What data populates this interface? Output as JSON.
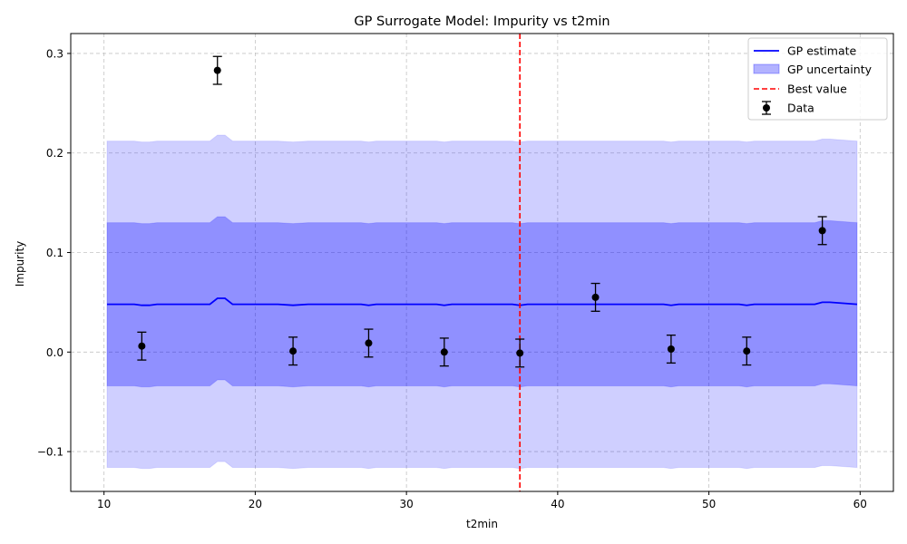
{
  "chart_data": {
    "type": "line",
    "title": "GP Surrogate Model: Impurity vs t2min",
    "xlabel": "t2min",
    "ylabel": "Impurity",
    "xlim": [
      7.8,
      62.2
    ],
    "ylim": [
      -0.14,
      0.32
    ],
    "x_ticks": [
      10,
      20,
      30,
      40,
      50,
      60
    ],
    "x_tick_labels": [
      "10",
      "20",
      "30",
      "40",
      "50",
      "60"
    ],
    "y_ticks": [
      -0.1,
      0.0,
      0.1,
      0.2,
      0.3
    ],
    "y_tick_labels": [
      "−0.1",
      "0.0",
      "0.1",
      "0.2",
      "0.3"
    ],
    "grid": true,
    "legend_position": "top-right",
    "legend": [
      "GP estimate",
      "GP uncertainty",
      "Best value",
      "Data"
    ],
    "gp_estimate": {
      "name": "GP estimate",
      "color": "#0000ff",
      "x": [
        10.2,
        12.0,
        12.5,
        13.0,
        13.5,
        17.0,
        17.5,
        18.0,
        18.5,
        21.5,
        22.5,
        23.5,
        27.0,
        27.5,
        28.0,
        32.0,
        32.5,
        33.0,
        37.0,
        37.5,
        38.0,
        42.0,
        42.5,
        43.0,
        47.0,
        47.5,
        48.0,
        52.0,
        52.5,
        53.0,
        57.0,
        57.5,
        58.0,
        59.8
      ],
      "y": [
        0.048,
        0.048,
        0.047,
        0.047,
        0.048,
        0.048,
        0.054,
        0.054,
        0.048,
        0.048,
        0.047,
        0.048,
        0.048,
        0.047,
        0.048,
        0.048,
        0.047,
        0.048,
        0.048,
        0.047,
        0.048,
        0.048,
        0.048,
        0.048,
        0.048,
        0.047,
        0.048,
        0.048,
        0.047,
        0.048,
        0.048,
        0.05,
        0.05,
        0.048
      ]
    },
    "gp_uncertainty": {
      "name": "GP uncertainty",
      "color": "#0000ff",
      "inner": {
        "upper": [
          0.13,
          0.13,
          0.129,
          0.129,
          0.13,
          0.13,
          0.136,
          0.136,
          0.13,
          0.13,
          0.129,
          0.13,
          0.13,
          0.129,
          0.13,
          0.13,
          0.129,
          0.13,
          0.13,
          0.129,
          0.13,
          0.13,
          0.13,
          0.13,
          0.13,
          0.129,
          0.13,
          0.13,
          0.129,
          0.13,
          0.13,
          0.132,
          0.132,
          0.13
        ],
        "lower": [
          -0.034,
          -0.034,
          -0.035,
          -0.035,
          -0.034,
          -0.034,
          -0.028,
          -0.028,
          -0.034,
          -0.034,
          -0.035,
          -0.034,
          -0.034,
          -0.035,
          -0.034,
          -0.034,
          -0.035,
          -0.034,
          -0.034,
          -0.035,
          -0.034,
          -0.034,
          -0.034,
          -0.034,
          -0.034,
          -0.035,
          -0.034,
          -0.034,
          -0.035,
          -0.034,
          -0.034,
          -0.032,
          -0.032,
          -0.034
        ]
      },
      "outer": {
        "upper": [
          0.212,
          0.212,
          0.211,
          0.211,
          0.212,
          0.212,
          0.218,
          0.218,
          0.212,
          0.212,
          0.211,
          0.212,
          0.212,
          0.211,
          0.212,
          0.212,
          0.211,
          0.212,
          0.212,
          0.211,
          0.212,
          0.212,
          0.212,
          0.212,
          0.212,
          0.211,
          0.212,
          0.212,
          0.211,
          0.212,
          0.212,
          0.214,
          0.214,
          0.212
        ],
        "lower": [
          -0.116,
          -0.116,
          -0.117,
          -0.117,
          -0.116,
          -0.116,
          -0.11,
          -0.11,
          -0.116,
          -0.116,
          -0.117,
          -0.116,
          -0.116,
          -0.117,
          -0.116,
          -0.116,
          -0.117,
          -0.116,
          -0.116,
          -0.117,
          -0.116,
          -0.116,
          -0.116,
          -0.116,
          -0.116,
          -0.117,
          -0.116,
          -0.116,
          -0.117,
          -0.116,
          -0.116,
          -0.114,
          -0.114,
          -0.116
        ]
      }
    },
    "best_value": {
      "name": "Best value",
      "x": 37.5,
      "color": "#ff0000"
    },
    "data_points": {
      "name": "Data",
      "color": "#000000",
      "x": [
        12.5,
        17.5,
        22.5,
        27.5,
        32.5,
        37.5,
        42.5,
        47.5,
        52.5,
        57.5
      ],
      "y": [
        0.006,
        0.283,
        0.001,
        0.009,
        0.0,
        -0.001,
        0.055,
        0.003,
        0.001,
        0.122
      ],
      "err": [
        0.014,
        0.014,
        0.014,
        0.014,
        0.014,
        0.014,
        0.014,
        0.014,
        0.014,
        0.014
      ]
    }
  }
}
